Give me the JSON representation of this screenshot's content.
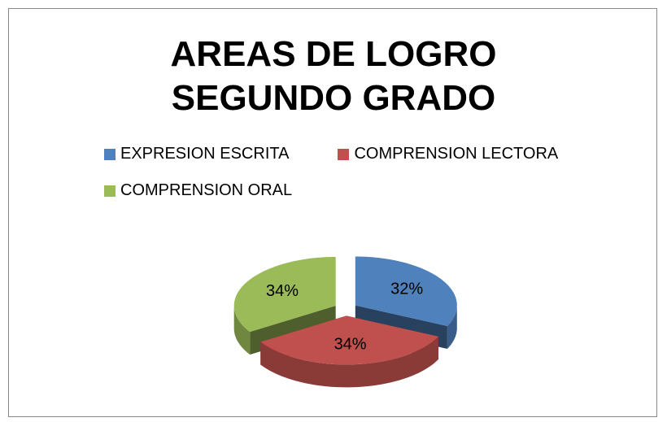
{
  "chart_data": {
    "type": "pie",
    "title": "AREAS DE LOGRO SEGUNDO GRADO",
    "categories": [
      "EXPRESION ESCRITA",
      "COMPRENSION LECTORA",
      "COMPRENSION ORAL"
    ],
    "values": [
      32,
      34,
      34
    ],
    "value_labels": [
      "32%",
      "34%",
      "34%"
    ],
    "colors": [
      "#4f81bd",
      "#c0504d",
      "#9bbb59"
    ],
    "legend": "top"
  }
}
